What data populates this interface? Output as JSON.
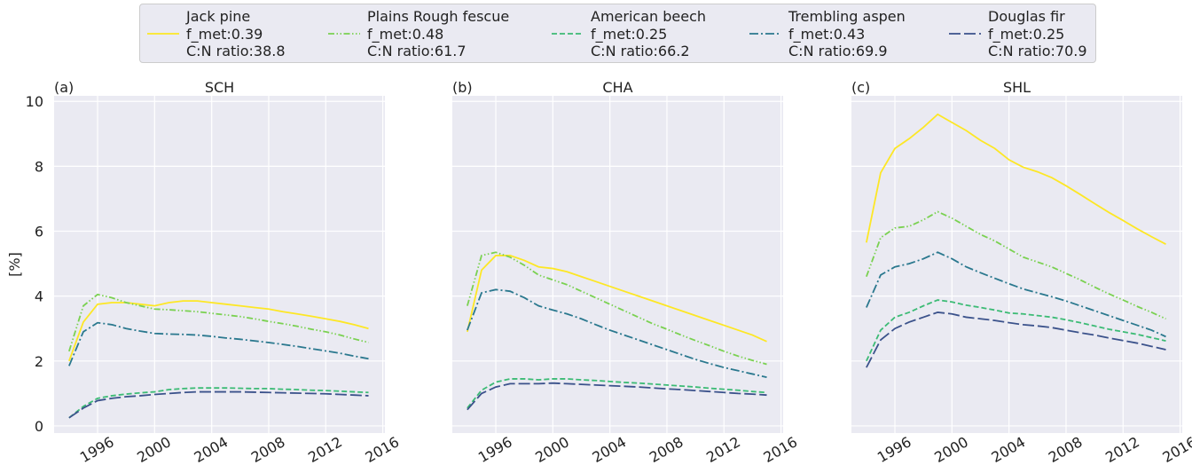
{
  "legend": {
    "loc": "upper center"
  },
  "chart_data": [
    {
      "type": "line",
      "panel_label": "(a)",
      "title": "SCH",
      "ylabel": "[%]",
      "x": [
        1994,
        1995,
        1996,
        1997,
        1998,
        1999,
        2000,
        2001,
        2002,
        2003,
        2004,
        2005,
        2006,
        2007,
        2008,
        2009,
        2010,
        2011,
        2012,
        2013,
        2014,
        2015
      ],
      "xlim": [
        1992.95,
        2016.15
      ],
      "xticks": [
        1996,
        2000,
        2004,
        2008,
        2012,
        2016
      ],
      "ylim": [
        -0.22,
        10.17
      ],
      "yticks": [
        0,
        2,
        4,
        6,
        8,
        10
      ],
      "grid": true,
      "series": [
        {
          "name": "Jack pine\nf_met:0.39\nC:N ratio:38.8",
          "color": "#fde725",
          "style": "solid",
          "values": [
            2.0,
            3.2,
            3.75,
            3.8,
            3.8,
            3.75,
            3.7,
            3.8,
            3.85,
            3.85,
            3.8,
            3.75,
            3.7,
            3.65,
            3.6,
            3.52,
            3.45,
            3.38,
            3.3,
            3.22,
            3.12,
            3.0
          ]
        },
        {
          "name": "Plains Rough fescue\nf_met:0.48\nC:N ratio:61.7",
          "color": "#7ad151",
          "style": "dashdotdot",
          "values": [
            2.3,
            3.7,
            4.05,
            3.95,
            3.8,
            3.7,
            3.6,
            3.58,
            3.55,
            3.52,
            3.47,
            3.42,
            3.37,
            3.3,
            3.22,
            3.15,
            3.07,
            2.98,
            2.9,
            2.8,
            2.68,
            2.57
          ]
        },
        {
          "name": "American beech\nf_met:0.25\nC:N ratio:66.2",
          "color": "#3cbb75",
          "style": "dashed",
          "values": [
            0.25,
            0.6,
            0.85,
            0.93,
            0.98,
            1.02,
            1.05,
            1.12,
            1.15,
            1.17,
            1.17,
            1.17,
            1.16,
            1.15,
            1.15,
            1.13,
            1.12,
            1.1,
            1.09,
            1.07,
            1.05,
            1.03
          ]
        },
        {
          "name": "Trembling aspen\nf_met:0.43\nC:N ratio:69.9",
          "color": "#2a788e",
          "style": "dashdot",
          "values": [
            1.85,
            2.9,
            3.18,
            3.12,
            3.0,
            2.92,
            2.85,
            2.83,
            2.82,
            2.8,
            2.76,
            2.71,
            2.67,
            2.62,
            2.57,
            2.51,
            2.45,
            2.38,
            2.31,
            2.24,
            2.15,
            2.07
          ]
        },
        {
          "name": "Douglas fir\nf_met:0.25\nC:N ratio:70.9",
          "color": "#3b528b",
          "style": "longdash",
          "values": [
            0.25,
            0.55,
            0.78,
            0.85,
            0.9,
            0.93,
            0.97,
            1.0,
            1.03,
            1.05,
            1.05,
            1.05,
            1.05,
            1.04,
            1.03,
            1.02,
            1.01,
            1.0,
            0.99,
            0.97,
            0.95,
            0.93
          ]
        }
      ]
    },
    {
      "type": "line",
      "panel_label": "(b)",
      "title": "CHA",
      "x": [
        1994,
        1995,
        1996,
        1997,
        1998,
        1999,
        2000,
        2001,
        2002,
        2003,
        2004,
        2005,
        2006,
        2007,
        2008,
        2009,
        2010,
        2011,
        2012,
        2013,
        2014,
        2015
      ],
      "xlim": [
        1992.95,
        2016.15
      ],
      "xticks": [
        1996,
        2000,
        2004,
        2008,
        2012,
        2016
      ],
      "ylim": [
        -0.22,
        10.17
      ],
      "grid": true,
      "series": [
        {
          "color": "#fde725",
          "style": "solid",
          "values": [
            2.9,
            4.8,
            5.25,
            5.25,
            5.1,
            4.9,
            4.85,
            4.75,
            4.6,
            4.45,
            4.3,
            4.15,
            4.0,
            3.85,
            3.7,
            3.55,
            3.4,
            3.25,
            3.1,
            2.95,
            2.8,
            2.6
          ]
        },
        {
          "color": "#7ad151",
          "style": "dashdotdot",
          "values": [
            3.7,
            5.25,
            5.35,
            5.2,
            4.95,
            4.65,
            4.5,
            4.35,
            4.15,
            3.95,
            3.75,
            3.55,
            3.35,
            3.15,
            2.98,
            2.8,
            2.63,
            2.47,
            2.3,
            2.15,
            2.02,
            1.9
          ]
        },
        {
          "color": "#3cbb75",
          "style": "dashed",
          "values": [
            0.55,
            1.1,
            1.35,
            1.45,
            1.45,
            1.42,
            1.45,
            1.45,
            1.42,
            1.4,
            1.37,
            1.34,
            1.32,
            1.29,
            1.26,
            1.23,
            1.2,
            1.16,
            1.13,
            1.1,
            1.06,
            1.03
          ]
        },
        {
          "color": "#2a788e",
          "style": "dashdot",
          "values": [
            2.95,
            4.1,
            4.2,
            4.15,
            3.95,
            3.7,
            3.57,
            3.45,
            3.3,
            3.12,
            2.95,
            2.8,
            2.65,
            2.5,
            2.35,
            2.2,
            2.05,
            1.92,
            1.8,
            1.7,
            1.6,
            1.5
          ]
        },
        {
          "color": "#3b528b",
          "style": "longdash",
          "values": [
            0.5,
            1.0,
            1.2,
            1.3,
            1.3,
            1.3,
            1.32,
            1.3,
            1.28,
            1.26,
            1.24,
            1.22,
            1.2,
            1.17,
            1.14,
            1.12,
            1.09,
            1.06,
            1.03,
            1.0,
            0.98,
            0.95
          ]
        }
      ]
    },
    {
      "type": "line",
      "panel_label": "(c)",
      "title": "SHL",
      "x": [
        1994,
        1995,
        1996,
        1997,
        1998,
        1999,
        2000,
        2001,
        2002,
        2003,
        2004,
        2005,
        2006,
        2007,
        2008,
        2009,
        2010,
        2011,
        2012,
        2013,
        2014,
        2015
      ],
      "xlim": [
        1992.95,
        2016.15
      ],
      "xticks": [
        1996,
        2000,
        2004,
        2008,
        2012,
        2016
      ],
      "ylim": [
        -0.22,
        10.17
      ],
      "grid": true,
      "series": [
        {
          "color": "#fde725",
          "style": "solid",
          "values": [
            5.65,
            7.8,
            8.55,
            8.85,
            9.2,
            9.6,
            9.35,
            9.1,
            8.8,
            8.55,
            8.2,
            7.97,
            7.83,
            7.65,
            7.4,
            7.13,
            6.85,
            6.58,
            6.33,
            6.07,
            5.83,
            5.6
          ]
        },
        {
          "color": "#7ad151",
          "style": "dashdotdot",
          "values": [
            4.6,
            5.8,
            6.1,
            6.15,
            6.35,
            6.6,
            6.4,
            6.15,
            5.9,
            5.7,
            5.45,
            5.2,
            5.05,
            4.9,
            4.7,
            4.5,
            4.28,
            4.07,
            3.88,
            3.68,
            3.5,
            3.3
          ]
        },
        {
          "color": "#3cbb75",
          "style": "dashed",
          "values": [
            2.0,
            2.95,
            3.35,
            3.5,
            3.7,
            3.88,
            3.82,
            3.72,
            3.65,
            3.57,
            3.48,
            3.45,
            3.4,
            3.35,
            3.27,
            3.18,
            3.08,
            2.98,
            2.9,
            2.82,
            2.72,
            2.62
          ]
        },
        {
          "color": "#2a788e",
          "style": "dashdot",
          "values": [
            3.65,
            4.65,
            4.9,
            5.0,
            5.15,
            5.35,
            5.15,
            4.9,
            4.72,
            4.55,
            4.38,
            4.22,
            4.1,
            3.98,
            3.85,
            3.7,
            3.55,
            3.4,
            3.25,
            3.1,
            2.95,
            2.75
          ]
        },
        {
          "color": "#3b528b",
          "style": "longdash",
          "values": [
            1.8,
            2.65,
            3.0,
            3.2,
            3.35,
            3.5,
            3.45,
            3.35,
            3.3,
            3.25,
            3.18,
            3.12,
            3.08,
            3.03,
            2.95,
            2.87,
            2.8,
            2.71,
            2.63,
            2.55,
            2.45,
            2.35
          ]
        }
      ]
    }
  ]
}
